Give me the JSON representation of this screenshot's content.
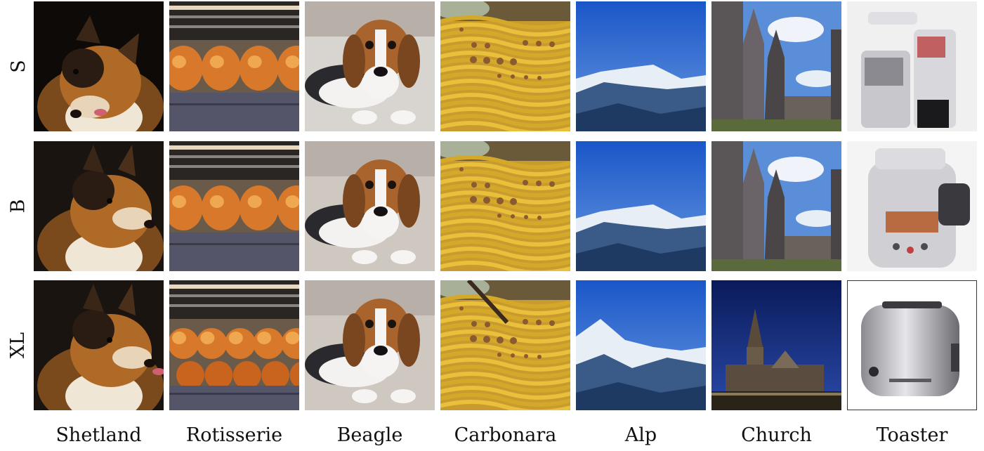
{
  "rows": [
    {
      "label": "S"
    },
    {
      "label": "B"
    },
    {
      "label": "XL"
    }
  ],
  "columns": [
    {
      "label": "Shetland",
      "subject": "shetland-dog"
    },
    {
      "label": "Rotisserie",
      "subject": "rotisserie"
    },
    {
      "label": "Beagle",
      "subject": "beagle-dog"
    },
    {
      "label": "Carbonara",
      "subject": "carbonara"
    },
    {
      "label": "Alp",
      "subject": "alp"
    },
    {
      "label": "Church",
      "subject": "church"
    },
    {
      "label": "Toaster",
      "subject": "toaster"
    }
  ]
}
